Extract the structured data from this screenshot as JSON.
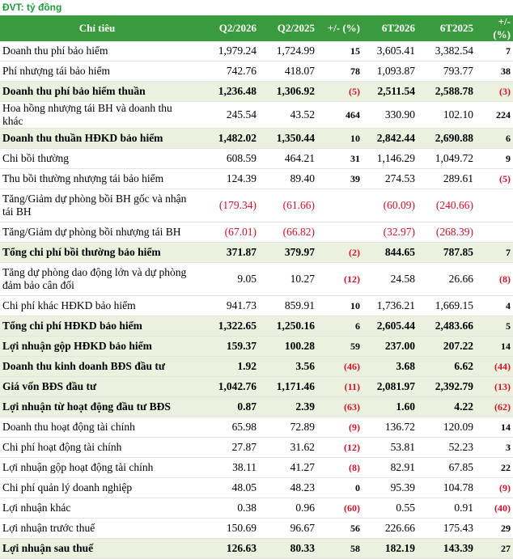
{
  "unit_label": "ĐVT: tỷ đồng",
  "columns": [
    "Chỉ tiêu",
    "Q2/2026",
    "Q2/2025",
    "+/- (%)",
    "6T2026",
    "6T2025",
    "+/- (%)"
  ],
  "rows": [
    {
      "label": "Doanh thu phí bảo hiểm",
      "q2_2026": "1,979.24",
      "q2_2025": "1,724.99",
      "chg_q": "15",
      "h1_2026": "3,605.41",
      "h1_2025": "3,382.54",
      "chg_h": "7"
    },
    {
      "label": "Phí nhượng tái bảo hiểm",
      "q2_2026": "742.76",
      "q2_2025": "418.07",
      "chg_q": "78",
      "h1_2026": "1,093.87",
      "h1_2025": "793.77",
      "chg_h": "38"
    },
    {
      "label": "Doanh thu phí bảo hiểm thuần",
      "q2_2026": "1,236.48",
      "q2_2025": "1,306.92",
      "chg_q": "(5)",
      "h1_2026": "2,511.54",
      "h1_2025": "2,588.78",
      "chg_h": "(3)",
      "bold": true
    },
    {
      "label": "Hoa hồng nhượng tái BH và doanh thu khác",
      "q2_2026": "245.54",
      "q2_2025": "43.52",
      "chg_q": "464",
      "h1_2026": "330.90",
      "h1_2025": "102.10",
      "chg_h": "224"
    },
    {
      "label": "Doanh thu thuần HĐKD bảo hiểm",
      "q2_2026": "1,482.02",
      "q2_2025": "1,350.44",
      "chg_q": "10",
      "h1_2026": "2,842.44",
      "h1_2025": "2,690.88",
      "chg_h": "6",
      "bold": true
    },
    {
      "label": "Chi bồi thường",
      "q2_2026": "608.59",
      "q2_2025": "464.21",
      "chg_q": "31",
      "h1_2026": "1,146.29",
      "h1_2025": "1,049.72",
      "chg_h": "9"
    },
    {
      "label": "Thu bồi thường nhượng tái bảo hiểm",
      "q2_2026": "124.39",
      "q2_2025": "89.40",
      "chg_q": "39",
      "h1_2026": "274.53",
      "h1_2025": "289.61",
      "chg_h": "(5)"
    },
    {
      "label": "Tăng/Giảm dự phòng bồi BH gốc và nhận tái BH",
      "q2_2026": "(179.34)",
      "q2_2025": "(61.66)",
      "chg_q": "",
      "h1_2026": "(60.09)",
      "h1_2025": "(240.66)",
      "chg_h": "",
      "tall": true
    },
    {
      "label": "Tăng/Giảm dự phòng bồi nhượng tái BH",
      "q2_2026": "(67.01)",
      "q2_2025": "(66.82)",
      "chg_q": "",
      "h1_2026": "(32.97)",
      "h1_2025": "(268.39)",
      "chg_h": ""
    },
    {
      "label": "Tổng chi phí bồi thường bảo hiểm",
      "q2_2026": "371.87",
      "q2_2025": "379.97",
      "chg_q": "(2)",
      "h1_2026": "844.65",
      "h1_2025": "787.85",
      "chg_h": "7",
      "bold": true
    },
    {
      "label": "Tăng dự phòng dao động lớn và dự phòng đảm bảo cân đối",
      "q2_2026": "9.05",
      "q2_2025": "10.27",
      "chg_q": "(12)",
      "h1_2026": "24.58",
      "h1_2025": "26.66",
      "chg_h": "(8)",
      "tall": true
    },
    {
      "label": "Chi phí khác HĐKD bảo hiểm",
      "q2_2026": "941.73",
      "q2_2025": "859.91",
      "chg_q": "10",
      "h1_2026": "1,736.21",
      "h1_2025": "1,669.15",
      "chg_h": "4"
    },
    {
      "label": "Tổng chi phí HĐKD bảo hiểm",
      "q2_2026": "1,322.65",
      "q2_2025": "1,250.16",
      "chg_q": "6",
      "h1_2026": "2,605.44",
      "h1_2025": "2,483.66",
      "chg_h": "5",
      "bold": true
    },
    {
      "label": "Lợi nhuận gộp HĐKD bảo hiểm",
      "q2_2026": "159.37",
      "q2_2025": "100.28",
      "chg_q": "59",
      "h1_2026": "237.00",
      "h1_2025": "207.22",
      "chg_h": "14",
      "bold": true
    },
    {
      "label": "Doanh thu kinh doanh BĐS đầu tư",
      "q2_2026": "1.92",
      "q2_2025": "3.56",
      "chg_q": "(46)",
      "h1_2026": "3.68",
      "h1_2025": "6.62",
      "chg_h": "(44)",
      "bold": true
    },
    {
      "label": "Giá vốn BĐS đầu tư",
      "q2_2026": "1,042.76",
      "q2_2025": "1,171.46",
      "chg_q": "(11)",
      "h1_2026": "2,081.97",
      "h1_2025": "2,392.79",
      "chg_h": "(13)",
      "bold": true
    },
    {
      "label": "Lợi nhuận từ hoạt động đầu tư BĐS",
      "q2_2026": "0.87",
      "q2_2025": "2.39",
      "chg_q": "(63)",
      "h1_2026": "1.60",
      "h1_2025": "4.22",
      "chg_h": "(62)",
      "bold": true
    },
    {
      "label": "Doanh thu hoạt động tài chính",
      "q2_2026": "65.98",
      "q2_2025": "72.89",
      "chg_q": "(9)",
      "h1_2026": "136.72",
      "h1_2025": "120.09",
      "chg_h": "14"
    },
    {
      "label": "Chi phí hoạt động tài chính",
      "q2_2026": "27.87",
      "q2_2025": "31.62",
      "chg_q": "(12)",
      "h1_2026": "53.81",
      "h1_2025": "52.23",
      "chg_h": "3"
    },
    {
      "label": "Lợi nhuận gộp hoạt động tài chính",
      "q2_2026": "38.11",
      "q2_2025": "41.27",
      "chg_q": "(8)",
      "h1_2026": "82.91",
      "h1_2025": "67.85",
      "chg_h": "22"
    },
    {
      "label": "Chi phí quản lý doanh nghiệp",
      "q2_2026": "48.05",
      "q2_2025": "48.23",
      "chg_q": "0",
      "h1_2026": "95.39",
      "h1_2025": "104.78",
      "chg_h": "(9)"
    },
    {
      "label": "Lợi nhuận khác",
      "q2_2026": "0.38",
      "q2_2025": "0.96",
      "chg_q": "(60)",
      "h1_2026": "0.55",
      "h1_2025": "0.91",
      "chg_h": "(40)"
    },
    {
      "label": "Lợi nhuận trước thuế",
      "q2_2026": "150.69",
      "q2_2025": "96.67",
      "chg_q": "56",
      "h1_2026": "226.66",
      "h1_2025": "175.43",
      "chg_h": "29"
    },
    {
      "label": "Lợi nhuận sau thuế",
      "q2_2026": "126.63",
      "q2_2025": "80.33",
      "chg_q": "58",
      "h1_2026": "182.19",
      "h1_2025": "143.39",
      "chg_h": "27",
      "bold": true
    }
  ],
  "colors": {
    "header_bg": "#3a9a3e",
    "highlight_bg": "#eaf2df",
    "negative": "#d0112b",
    "unit_text": "#1e9a3c"
  }
}
